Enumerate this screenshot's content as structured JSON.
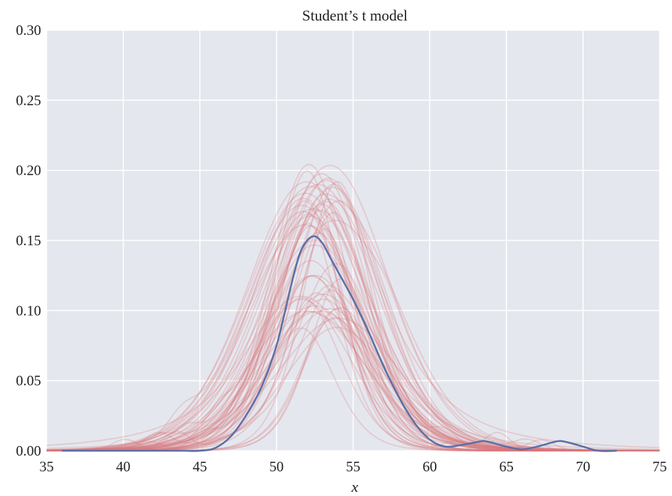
{
  "chart_data": {
    "type": "line",
    "title": "Student’s t model",
    "xlabel": "x",
    "ylabel": "",
    "xlim": [
      35,
      75
    ],
    "ylim": [
      0.0,
      0.3
    ],
    "x_ticks": [
      35,
      40,
      45,
      50,
      55,
      60,
      65,
      70,
      75
    ],
    "x_tick_labels": [
      "35",
      "40",
      "45",
      "50",
      "55",
      "60",
      "65",
      "70",
      "75"
    ],
    "y_ticks": [
      0.0,
      0.05,
      0.1,
      0.15,
      0.2,
      0.25,
      0.3
    ],
    "y_tick_labels": [
      "0.00",
      "0.05",
      "0.10",
      "0.15",
      "0.20",
      "0.25",
      "0.30"
    ],
    "grid": true,
    "background_color": "#e5e7ee",
    "grid_color": "#ffffff",
    "series": [
      {
        "role": "observed density",
        "color": "#5a6fa6",
        "x": [
          36,
          40,
          43,
          44,
          45,
          46,
          47,
          48,
          49,
          50,
          51,
          51.5,
          52,
          52.5,
          53,
          53.5,
          54,
          55,
          56,
          57,
          58,
          59,
          60,
          61,
          62,
          63,
          63.5,
          64,
          65,
          66,
          67,
          68,
          68.5,
          69,
          70,
          71,
          72.2
        ],
        "y": [
          0.0,
          0.0,
          0.0,
          0.0,
          0.0,
          0.002,
          0.01,
          0.025,
          0.045,
          0.075,
          0.12,
          0.14,
          0.15,
          0.153,
          0.148,
          0.138,
          0.128,
          0.108,
          0.085,
          0.06,
          0.038,
          0.02,
          0.008,
          0.003,
          0.004,
          0.006,
          0.007,
          0.006,
          0.003,
          0.001,
          0.003,
          0.006,
          0.007,
          0.006,
          0.003,
          0.0,
          0.0
        ]
      }
    ],
    "posterior_predictive": {
      "color": "#d9767a",
      "opacity": 0.25,
      "count": 60
    }
  }
}
